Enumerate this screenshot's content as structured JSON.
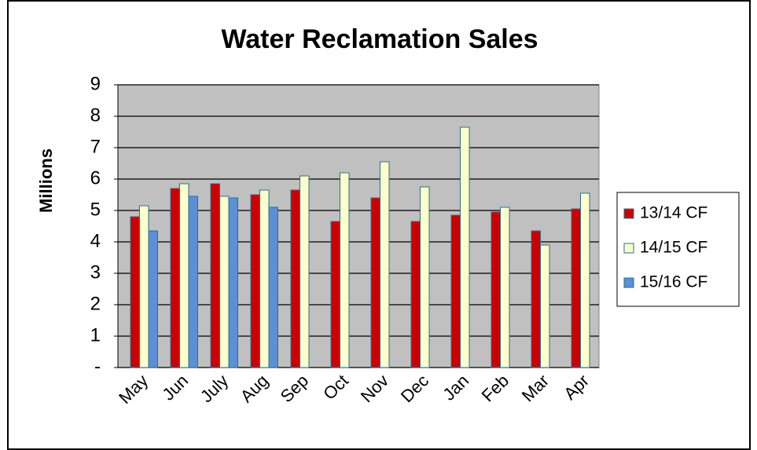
{
  "chart_data": {
    "type": "bar",
    "title": "Water Reclamation  Sales",
    "y_label": "Millions",
    "categories": [
      "May",
      "Jun",
      "July",
      "Aug",
      "Sep",
      "Oct",
      "Nov",
      "Dec",
      "Jan",
      "Feb",
      "Mar",
      "Apr"
    ],
    "series": [
      {
        "name": "13/14 CF",
        "color": "#cc0000",
        "values": [
          4.8,
          5.7,
          5.85,
          5.5,
          5.65,
          4.65,
          5.4,
          4.65,
          4.85,
          4.95,
          4.35,
          5.05
        ]
      },
      {
        "name": "14/15 CF",
        "color": "#ffffcc",
        "values": [
          5.15,
          5.85,
          5.45,
          5.65,
          6.1,
          6.2,
          6.55,
          5.75,
          7.65,
          5.1,
          3.9,
          5.55
        ]
      },
      {
        "name": "15/16 CF",
        "color": "#5b8fd6",
        "values": [
          4.35,
          5.45,
          5.4,
          5.1,
          null,
          null,
          null,
          null,
          null,
          null,
          null,
          null
        ]
      }
    ],
    "ylim": [
      0,
      9
    ],
    "yticks": [
      {
        "value": 0,
        "label": "-"
      },
      1,
      2,
      3,
      4,
      5,
      6,
      7,
      8,
      9
    ],
    "grid": true,
    "legend": "right",
    "plot_background": "#c0c0c0"
  }
}
